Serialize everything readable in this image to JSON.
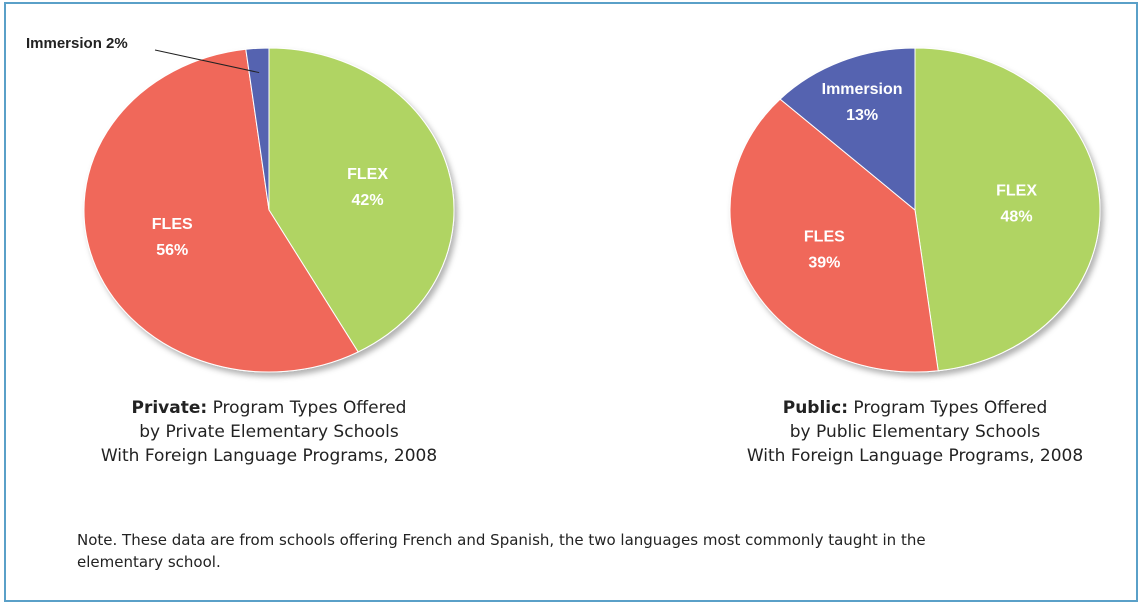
{
  "chart_data": [
    {
      "type": "pie",
      "caption_lead": "Private:",
      "caption": [
        "Program Types Offered",
        "by Private Elementary Schools",
        "With Foreign Language Programs, 2008"
      ],
      "categories": [
        "FLEX",
        "FLES",
        "Immersion"
      ],
      "values": [
        42,
        56,
        2
      ],
      "value_labels": [
        "42%",
        "56%",
        "2%"
      ],
      "colors": [
        "#b0d464",
        "#f0675a",
        "#5563b0"
      ]
    },
    {
      "type": "pie",
      "caption_lead": "Public:",
      "caption": [
        "Program Types Offered",
        "by Public Elementary Schools",
        "With Foreign Language Programs, 2008"
      ],
      "categories": [
        "FLEX",
        "FLES",
        "Immersion"
      ],
      "values": [
        48,
        39,
        13
      ],
      "value_labels": [
        "48%",
        "39%",
        "13%"
      ],
      "colors": [
        "#b0d464",
        "#f0675a",
        "#5563b0"
      ]
    }
  ],
  "note": "Note. These data are from schools offering French and Spanish, the two languages most commonly taught in the elementary school."
}
